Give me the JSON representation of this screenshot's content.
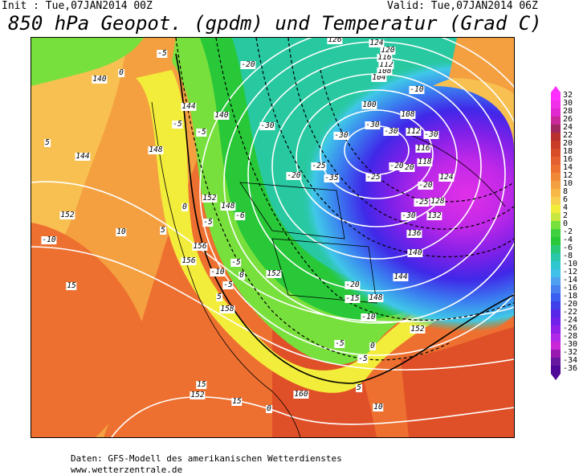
{
  "header": {
    "init": "Init : Tue,07JAN2014 00Z",
    "valid": "Valid: Tue,07JAN2014 06Z",
    "title": "850 hPa Geopot. (gpdm) und Temperatur (Grad C)"
  },
  "colors": {
    "deep_red": "#c8321e",
    "red": "#e05028",
    "orange_red": "#ee7030",
    "orange": "#f4a040",
    "light_orange": "#f8c050",
    "yellow": "#f2ec3a",
    "lime": "#78e03c",
    "green": "#28c838",
    "teal": "#28c8a0",
    "cyan": "#40c8e8",
    "sky": "#50a0f0",
    "blue": "#3a5ef0",
    "indigo": "#4028e8",
    "violet": "#8020e8",
    "purple": "#c028e8",
    "magenta": "#e030e8"
  },
  "legend": {
    "values": [
      "32",
      "30",
      "28",
      "26",
      "24",
      "22",
      "20",
      "18",
      "16",
      "14",
      "12",
      "10",
      "8",
      "6",
      "4",
      "2",
      "0",
      "-2",
      "-4",
      "-6",
      "-8",
      "-10",
      "-12",
      "-14",
      "-16",
      "-18",
      "-20",
      "-22",
      "-24",
      "-26",
      "-28",
      "-30",
      "-32",
      "-34",
      "-36"
    ],
    "swatches": [
      "#ff30ff",
      "#f030e8",
      "#e028d0",
      "#c82898",
      "#a02860",
      "#b83030",
      "#c83c28",
      "#d84c28",
      "#e46030",
      "#ec7030",
      "#f08838",
      "#f4a040",
      "#f8b848",
      "#f8d050",
      "#f2ec3a",
      "#c8e840",
      "#78e03c",
      "#40d040",
      "#28c838",
      "#28c878",
      "#28c8a8",
      "#30c8d0",
      "#40c0e8",
      "#50a0f0",
      "#4880f0",
      "#3a5ef0",
      "#4040e8",
      "#5828e8",
      "#7020e8",
      "#9020e8",
      "#b028e8",
      "#c828d8",
      "#9818b0",
      "#6818a0",
      "#500898"
    ]
  },
  "height_labels": [
    "140",
    "144",
    "140",
    "144",
    "148",
    "152",
    "152",
    "148",
    "156",
    "156",
    "158",
    "152",
    "152",
    "160",
    "144",
    "148",
    "152",
    "140",
    "136",
    "132",
    "128",
    "124",
    "120",
    "118",
    "116",
    "112",
    "108",
    "100",
    "104",
    "108",
    "112",
    "116",
    "120",
    "124",
    "126"
  ],
  "temp_labels": [
    "-5",
    "0",
    "-5",
    "-5",
    "-20",
    "-30",
    "-25",
    "-20",
    "-25",
    "-30",
    "-35",
    "-30",
    "-30",
    "-30",
    "-25",
    "-20",
    "-20",
    "-15",
    "-10",
    "-5",
    "0",
    "5",
    "10",
    "15",
    "15",
    "15",
    "5",
    "0",
    "-5",
    "-10",
    "10",
    "5",
    "-5",
    "0",
    "-6",
    "-5",
    "-10",
    "-5",
    "0",
    "5",
    "-30",
    "-20",
    "-10"
  ],
  "footer": {
    "line1": "Daten: GFS-Modell des amerikanischen Wetterdienstes",
    "line2": "www.wetterzentrale.de"
  }
}
